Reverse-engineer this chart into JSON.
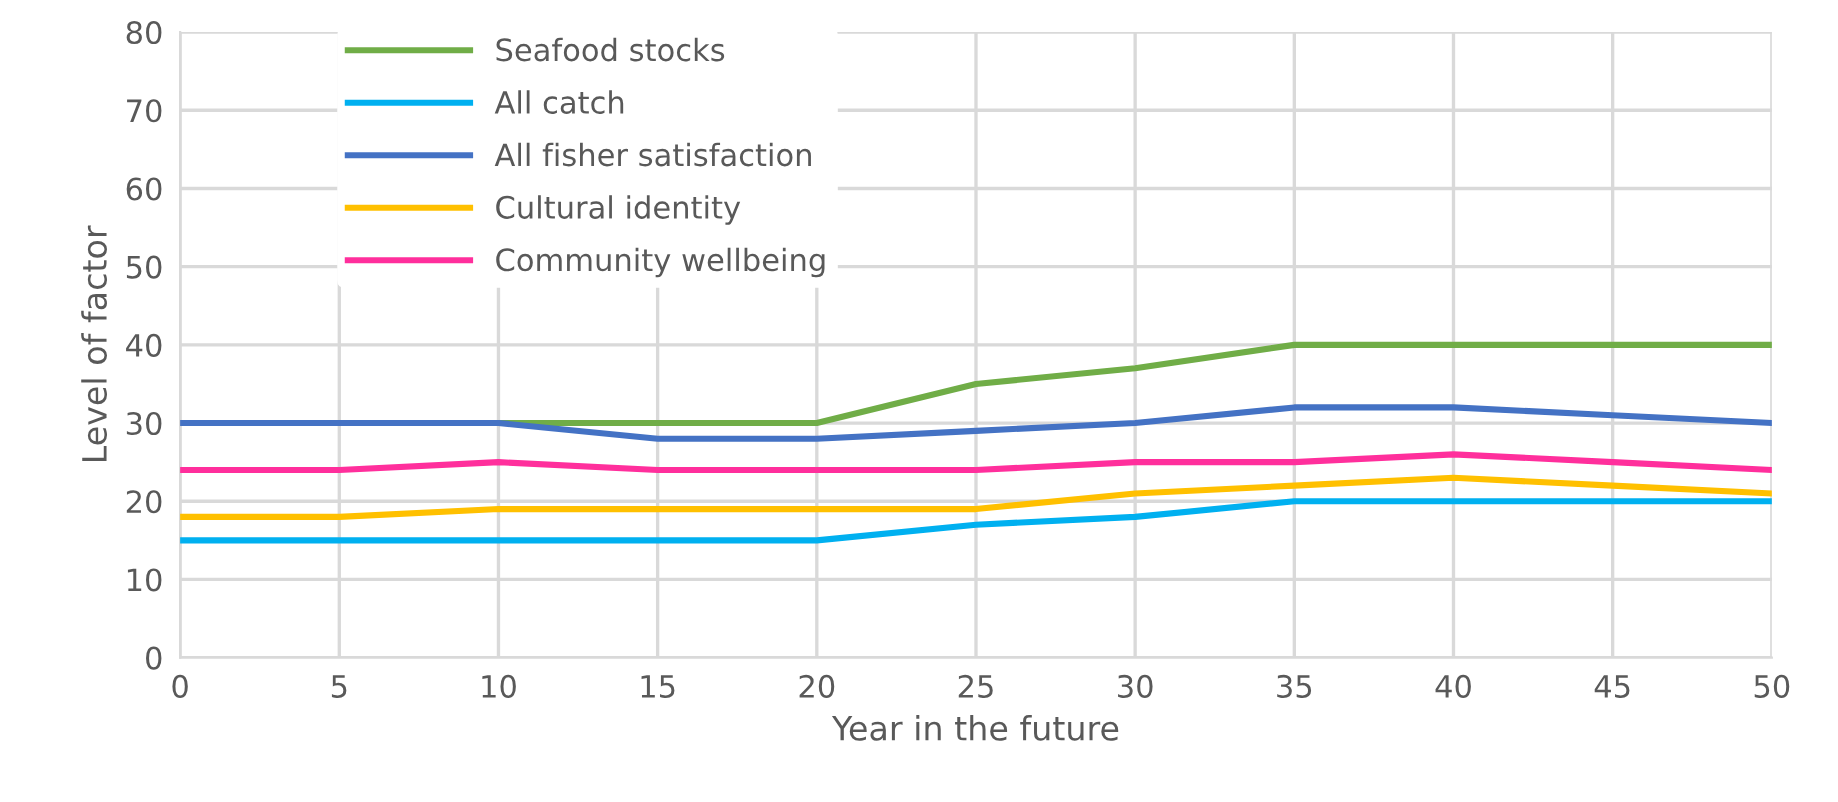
{
  "chart_data": {
    "type": "line",
    "xlabel": "Year in the future",
    "ylabel": "Level of factor",
    "x": [
      0,
      5,
      10,
      15,
      20,
      25,
      30,
      35,
      40,
      45,
      50
    ],
    "series": [
      {
        "name": "Seafood stocks",
        "color": "#70ad47",
        "values": [
          null,
          null,
          30,
          30,
          30,
          35,
          37,
          40,
          40,
          40,
          40
        ]
      },
      {
        "name": "All catch",
        "color": "#00b0f0",
        "values": [
          15,
          15,
          15,
          15,
          15,
          17,
          18,
          20,
          20,
          20,
          20
        ]
      },
      {
        "name": "All fisher satisfaction",
        "color": "#4472c4",
        "values": [
          30,
          30,
          30,
          28,
          28,
          29,
          30,
          32,
          32,
          31,
          30
        ]
      },
      {
        "name": "Cultural identity",
        "color": "#ffc000",
        "values": [
          18,
          18,
          19,
          19,
          19,
          19,
          21,
          22,
          23,
          22,
          21
        ]
      },
      {
        "name": "Community wellbeing",
        "color": "#ff2f9c",
        "values": [
          24,
          24,
          25,
          24,
          24,
          24,
          25,
          25,
          26,
          25,
          24
        ]
      }
    ],
    "xlim": [
      0,
      50
    ],
    "xticks": [
      0,
      5,
      10,
      15,
      20,
      25,
      30,
      35,
      40,
      45,
      50
    ],
    "ylim": [
      0,
      80
    ],
    "yticks": [
      0,
      10,
      20,
      30,
      40,
      50,
      60,
      70,
      80
    ],
    "grid": true,
    "legend": "top left",
    "marker": "none",
    "line_style": "solid"
  }
}
